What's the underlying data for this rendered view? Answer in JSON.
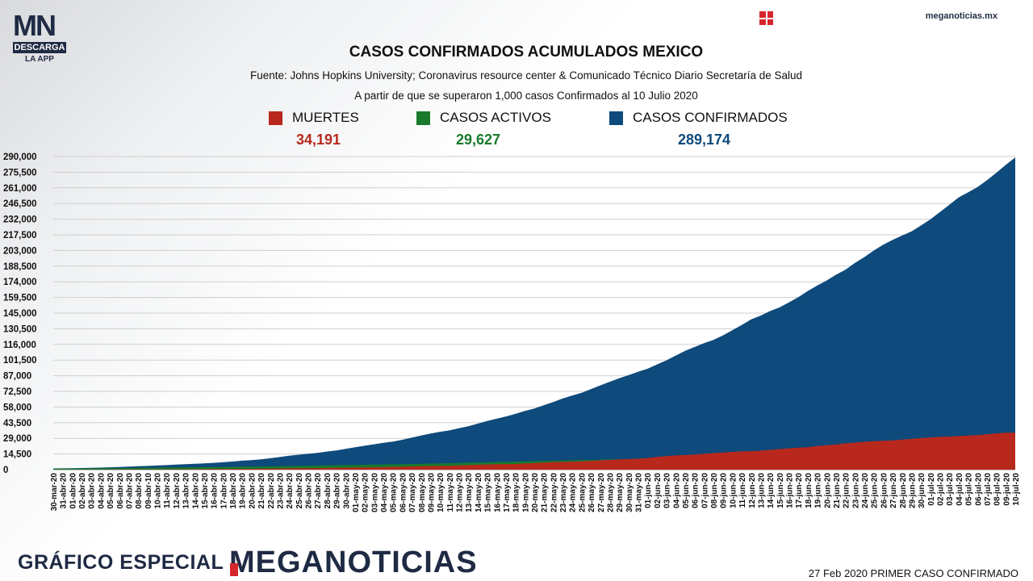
{
  "logo": {
    "letters_m": "M",
    "letters_n": "N",
    "descarga": "DESCARGA",
    "app": "LA APP"
  },
  "site": "meganoticias.mx",
  "footer": {
    "left": "GRÁFICO ESPECIAL",
    "brand_rest": "EGANOTICIAS",
    "brand_m": "M",
    "right": "27 Feb 2020 PRIMER CASO CONFIRMADO"
  },
  "colors": {
    "muertes": "#b8281c",
    "activos": "#197a2c",
    "confirmados": "#0e4a7b",
    "brand": "#1f2a44",
    "accent": "#d6252d"
  },
  "chart_data": {
    "type": "area",
    "title": "CASOS CONFIRMADOS ACUMULADOS MEXICO",
    "source": "Fuente: Johns Hopkins University; Coronavirus resource center & Comunicado Técnico Diario Secretaría de Salud",
    "subtitle": "A partir de que se superaron 1,000 casos Confirmados al 10 Julio 2020",
    "legend": [
      {
        "name": "MUERTES",
        "total": "34,191"
      },
      {
        "name": "CASOS ACTIVOS",
        "total": "29,627"
      },
      {
        "name": "CASOS CONFIRMADOS",
        "total": "289,174"
      }
    ],
    "ylim": [
      0,
      290000
    ],
    "y_ticks": [
      "0",
      "14,500",
      "29,000",
      "43,500",
      "58,000",
      "72,500",
      "87,000",
      "101,500",
      "116,000",
      "130,500",
      "145,000",
      "159,500",
      "174,000",
      "188,500",
      "203,000",
      "217,500",
      "232,000",
      "246,500",
      "261,000",
      "275,500",
      "290,000"
    ],
    "y_tick_values": [
      0,
      14500,
      29000,
      43500,
      58000,
      72500,
      87000,
      101500,
      116000,
      130500,
      145000,
      159500,
      174000,
      188500,
      203000,
      217500,
      232000,
      246500,
      261000,
      275500,
      290000
    ],
    "categories": [
      "30-mar-20",
      "31-abr-20",
      "01-abr-20",
      "02-abr-20",
      "03-abr-20",
      "04-abr-20",
      "05-abr-20",
      "06-abr-20",
      "07-abr-20",
      "08-abr-20",
      "09-abr-10",
      "10-abr-20",
      "11-abr-20",
      "12-abr-20",
      "13-abr-20",
      "14-abr-20",
      "15-abr-20",
      "16-abr-20",
      "17-abr-20",
      "18-abr-20",
      "19-abr-20",
      "20-abr-20",
      "21-abr-20",
      "22-abr-20",
      "23-abr-20",
      "24-abr-20",
      "25-abr-20",
      "26-abr-20",
      "27-abr-20",
      "28-abr-20",
      "29-abr-20",
      "30-abr-20",
      "01-may-20",
      "02-may-20",
      "03-may-20",
      "04-may-20",
      "05-may-20",
      "06-may-20",
      "07-may-20",
      "08-may-20",
      "09-may-20",
      "10-may-20",
      "11-may-20",
      "12-may-20",
      "13-may-20",
      "14-may-20",
      "15-may-20",
      "16-may-20",
      "17-may-20",
      "18-may-20",
      "19-may-20",
      "20-may-20",
      "21-may-20",
      "22-may-20",
      "23-may-20",
      "24-may-20",
      "25-may-20",
      "26-may-20",
      "27-may-20",
      "28-may-20",
      "29-may-20",
      "30-may-20",
      "31-may-20",
      "01-jun-20",
      "02-jun-20",
      "03-jun-20",
      "04-jun-20",
      "05-jun-20",
      "06-jun-20",
      "07-jun-20",
      "08-jun-20",
      "09-jun-20",
      "10-jun-20",
      "11-jun-20",
      "12-jun-20",
      "13-jun-20",
      "14-jun-20",
      "15-jun-20",
      "16-jun-20",
      "17-jun-20",
      "18-jun-20",
      "19-jun-20",
      "20-jun-20",
      "21-jun-20",
      "22-jun-20",
      "23-jun-20",
      "24-jun-20",
      "25-jun-20",
      "26-jun-20",
      "27-jun-20",
      "28-jun-20",
      "29-jun-20",
      "30-jun-20",
      "01-jul-20",
      "02-jul-20",
      "03-jul-20",
      "04-jul-20",
      "05-jul-20",
      "06-jul-20",
      "07-jul-20",
      "08-jul-20",
      "09-jul-20",
      "10-jul-20"
    ],
    "series": [
      {
        "name": "CASOS CONFIRMADOS",
        "values": [
          1094,
          1215,
          1378,
          1510,
          1688,
          1890,
          2143,
          2439,
          2785,
          3181,
          3441,
          3844,
          4219,
          4661,
          5014,
          5399,
          5847,
          6297,
          6875,
          7497,
          8261,
          8772,
          9501,
          10544,
          11633,
          12872,
          13842,
          14677,
          15529,
          16752,
          17799,
          19224,
          20739,
          22088,
          23471,
          24905,
          26025,
          27634,
          29616,
          31522,
          33460,
          35022,
          36327,
          38324,
          40186,
          42595,
          45032,
          47144,
          49219,
          51633,
          54346,
          56594,
          59567,
          62527,
          65856,
          68620,
          71105,
          74560,
          78023,
          81400,
          84627,
          87512,
          90664,
          93435,
          97326,
          101238,
          105680,
          110026,
          113619,
          117103,
          120102,
          124301,
          129184,
          133974,
          139196,
          142690,
          146837,
          150264,
          154863,
          159793,
          165455,
          170485,
          175202,
          180545,
          185122,
          191410,
          196847,
          202951,
          208392,
          212802,
          216852,
          220657,
          226089,
          231770,
          238511,
          245251,
          252165,
          256848,
          261750,
          268008,
          275003,
          282283,
          289174
        ]
      },
      {
        "name": "CASOS ACTIVOS",
        "values": [
          900,
          950,
          1000,
          1050,
          1100,
          1200,
          1300,
          1400,
          1500,
          1600,
          1700,
          1800,
          1900,
          2000,
          2100,
          2200,
          2300,
          2400,
          2500,
          2600,
          2700,
          2800,
          2900,
          3000,
          3150,
          3300,
          3450,
          3600,
          3750,
          3900,
          4050,
          4200,
          4350,
          4500,
          4650,
          4800,
          4950,
          5100,
          5250,
          5400,
          5600,
          5800,
          6000,
          6200,
          6400,
          6600,
          6800,
          7000,
          7200,
          7400,
          7600,
          7800,
          8000,
          8200,
          8400,
          8600,
          8800,
          9000,
          9200,
          9400,
          9600,
          9800,
          10000,
          10300,
          10600,
          10900,
          11200,
          11500,
          11800,
          12100,
          12400,
          12700,
          13000,
          13400,
          13800,
          14200,
          14600,
          15000,
          15400,
          15800,
          16200,
          16600,
          17000,
          17500,
          18000,
          18500,
          19000,
          19500,
          20000,
          20500,
          21000,
          21500,
          22000,
          22700,
          23400,
          24100,
          24800,
          25600,
          26400,
          27200,
          28000,
          28800,
          29627
        ]
      },
      {
        "name": "MUERTES",
        "values": [
          28,
          29,
          37,
          50,
          60,
          79,
          94,
          125,
          141,
          174,
          194,
          233,
          273,
          296,
          332,
          406,
          449,
          486,
          546,
          650,
          686,
          712,
          857,
          970,
          1069,
          1221,
          1305,
          1351,
          1434,
          1569,
          1732,
          1859,
          1972,
          2061,
          2154,
          2271,
          2507,
          2704,
          2961,
          3160,
          3353,
          3465,
          3573,
          3926,
          4220,
          4477,
          4767,
          5045,
          5177,
          5332,
          5666,
          6090,
          6510,
          6989,
          7179,
          7394,
          7633,
          8134,
          8597,
          9044,
          9415,
          9779,
          10167,
          10637,
          11729,
          12545,
          13170,
          13511,
          14053,
          14649,
          15357,
          15944,
          16448,
          16872,
          17141,
          17580,
          18310,
          19080,
          19747,
          20394,
          20781,
          21825,
          22584,
          23377,
          24324,
          25060,
          25779,
          26381,
          26648,
          27121,
          27769,
          28510,
          29189,
          29843,
          30366,
          30639,
          31119,
          31638,
          32014,
          32796,
          33526,
          34191,
          34191
        ]
      }
    ]
  }
}
